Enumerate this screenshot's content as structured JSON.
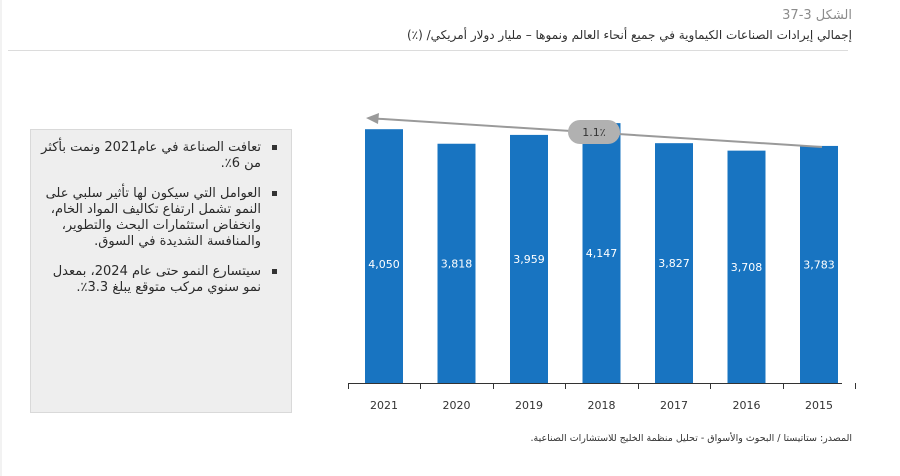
{
  "figure": {
    "number": "الشكل 3-37",
    "title": "إجمالي إيرادات الصناعات الكيماوية في جميع أنحاء العالم ونموها – مليار دولار أمريكي/ (٪)"
  },
  "panel": {
    "bullets": [
      "تعافت الصناعة في عام2021 ونمت بأكثر من 6٪.",
      "العوامل التي سيكون لها تأثير سلبي على النمو تشمل ارتفاع تكاليف المواد الخام، وانخفاض استثمارات البحث والتطوير، والمنافسة الشديدة في السوق.",
      "سيتسارع النمو حتى عام 2024، بمعدل نمو سنوي مركب متوقع يبلغ 3.3٪."
    ]
  },
  "chart_data": {
    "type": "bar",
    "categories": [
      "2021",
      "2020",
      "2019",
      "2018",
      "2017",
      "2016",
      "2015"
    ],
    "values": [
      4050,
      3818,
      3959,
      4147,
      3827,
      3708,
      3783
    ],
    "value_labels": [
      "4,050",
      "3,818",
      "3,959",
      "4,147",
      "3,827",
      "3,708",
      "3,783"
    ],
    "ylim": [
      0,
      4500
    ],
    "grid": false,
    "trend": {
      "label": "1.1٪",
      "direction": "right-to-left"
    },
    "colors": {
      "bar": "#1874c1",
      "label_text": "#ffffff",
      "trend": "#9a9a9a",
      "badge": "#b1b1b1",
      "badge_text": "#333333",
      "axis": "#333333"
    }
  },
  "source": "المصدر: ستاتيستا / البحوث والأسواق - تحليل منظمة الخليج للاستشارات الصناعية."
}
